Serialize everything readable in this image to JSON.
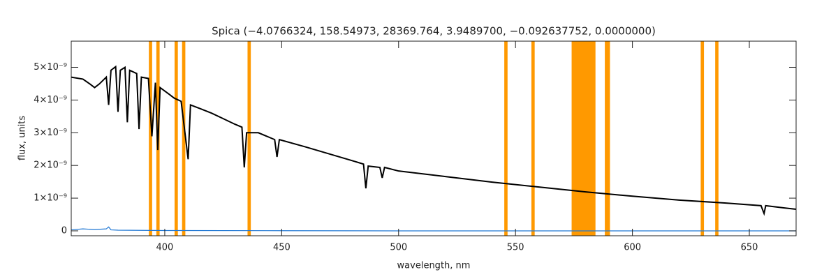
{
  "chart_data": {
    "type": "line",
    "title": "Spica   (−4.0766324, 158.54973, 28369.764, 3.9489700, −0.092637752, 0.0000000)",
    "x_label": "wavelength, nm",
    "y_label": "flux, units",
    "xlim": [
      360,
      670
    ],
    "ylim": [
      -1.5e-10,
      5.8e-09
    ],
    "xticks": [
      400,
      450,
      500,
      550,
      600,
      650
    ],
    "yticks": [
      0,
      {
        "value": 1e-09,
        "label": "1×10⁻⁹"
      },
      {
        "value": 2e-09,
        "label": "2×10⁻⁹"
      },
      {
        "value": 3e-09,
        "label": "3×10⁻⁹"
      },
      {
        "value": 4e-09,
        "label": "4×10⁻⁹"
      },
      {
        "value": 5e-09,
        "label": "5×10⁻⁹"
      }
    ],
    "band_color": "#ff9900",
    "bands": [
      [
        393.2,
        394.6
      ],
      [
        396.4,
        397.8
      ],
      [
        404.2,
        405.6
      ],
      [
        407.4,
        408.8
      ],
      [
        435.4,
        436.8
      ],
      [
        545.2,
        546.6
      ],
      [
        556.8,
        558.2
      ],
      [
        574.0,
        584.2
      ],
      [
        588.2,
        590.4
      ],
      [
        629.2,
        630.6
      ],
      [
        635.4,
        636.8
      ]
    ],
    "series": [
      {
        "color": "#000000",
        "x": [
          360,
          365,
          368,
          370,
          372,
          375,
          376,
          377,
          379,
          380,
          381,
          383,
          384,
          385,
          388,
          389,
          390,
          393,
          394.5,
          396,
          397,
          398,
          402,
          404,
          407,
          410,
          411,
          415,
          420,
          425,
          430,
          433,
          434,
          435,
          440,
          447,
          448,
          449,
          460,
          470,
          480,
          485,
          486,
          487,
          492,
          493,
          494,
          500,
          520,
          540,
          560,
          580,
          600,
          620,
          640,
          655,
          656.3,
          657,
          665,
          670
        ],
        "values": [
          4.7e-09,
          4.64e-09,
          4.49e-09,
          4.38e-09,
          4.49e-09,
          4.7e-09,
          3.85e-09,
          4.91e-09,
          5.02e-09,
          3.64e-09,
          4.91e-09,
          5e-09,
          3.32e-09,
          4.91e-09,
          4.81e-09,
          3.11e-09,
          4.7e-09,
          4.66e-09,
          2.89e-09,
          4.53e-09,
          2.47e-09,
          4.38e-09,
          4.17e-09,
          4.06e-09,
          3.96e-09,
          2.19e-09,
          3.85e-09,
          3.74e-09,
          3.6e-09,
          3.43e-09,
          3.26e-09,
          3.17e-09,
          1.94e-09,
          3e-09,
          3e-09,
          2.79e-09,
          2.26e-09,
          2.79e-09,
          2.57e-09,
          2.36e-09,
          2.15e-09,
          2.04e-09,
          1.3e-09,
          1.98e-09,
          1.94e-09,
          1.62e-09,
          1.94e-09,
          1.83e-09,
          1.66e-09,
          1.49e-09,
          1.34e-09,
          1.19e-09,
          1.06e-09,
          9.4e-10,
          8.5e-10,
          7.7e-10,
          5.3e-10,
          7.7e-10,
          7e-10,
          6.6e-10
        ]
      },
      {
        "color": "#1f77d4",
        "x": [
          360,
          365,
          370,
          375,
          376,
          377,
          380,
          400,
          450,
          500,
          600,
          670
        ],
        "values": [
          3e-11,
          6e-11,
          4e-11,
          6e-11,
          1.2e-10,
          3e-11,
          2e-11,
          1e-11,
          5e-12,
          0,
          0,
          0
        ]
      }
    ]
  }
}
